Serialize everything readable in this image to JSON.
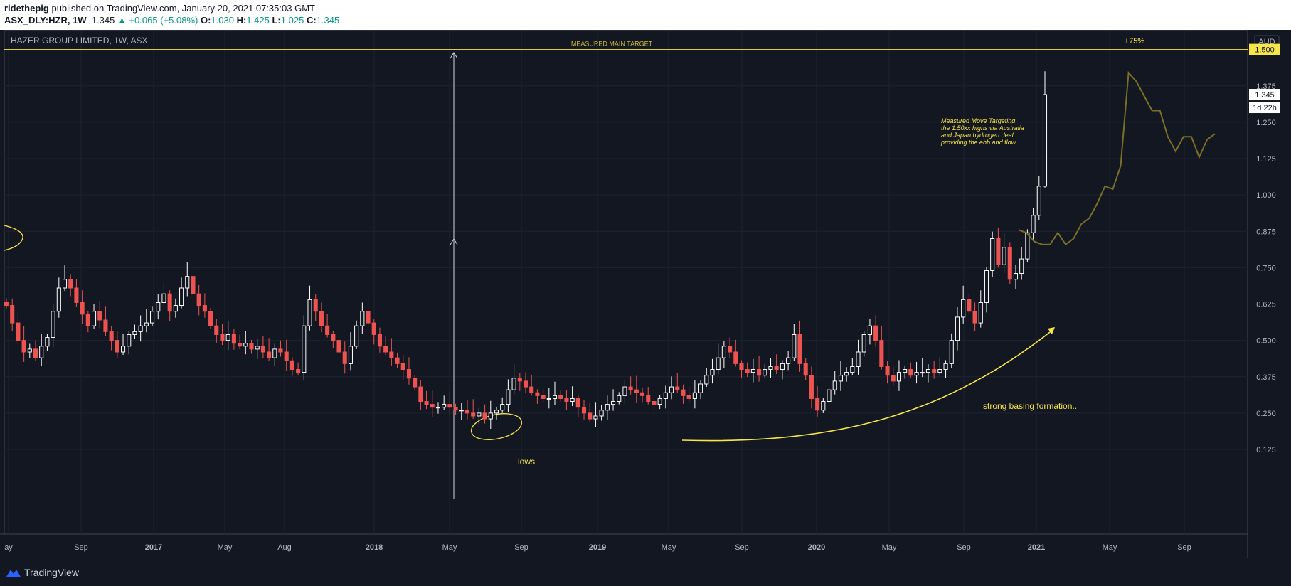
{
  "header": {
    "author": "ridethepig",
    "published_text": "published on TradingView.com, January 20, 2021 07:35:03 GMT",
    "symbol": "ASX_DLY:HZR, 1W",
    "last": "1.345",
    "change": "+0.065 (+5.08%)",
    "o_label": "O:",
    "o_value": "1.030",
    "h_label": "H:",
    "h_value": "1.425",
    "l_label": "L:",
    "l_value": "1.025",
    "c_label": "C:",
    "c_value": "1.345"
  },
  "footer": {
    "brand": "TradingView",
    "logo_icon": "tradingview-logo-icon"
  },
  "colors": {
    "background": "#131722",
    "up": "#ffffff",
    "down": "#ef5350",
    "annotation": "#f7e64a",
    "projection": "#7a7025",
    "grid": "#1f2330"
  },
  "chart_data": {
    "type": "candlestick",
    "title": "HAZER GROUP LIMITED, 1W, ASX",
    "currency": "AUD",
    "ylim": [
      0.05,
      1.6
    ],
    "y_ticks": [
      "0.125",
      "0.250",
      "0.375",
      "0.500",
      "0.625",
      "0.750",
      "0.875",
      "1.000",
      "1.125",
      "1.250",
      "1.375"
    ],
    "x_ticks": [
      "ay",
      "Sep",
      "2017",
      "May",
      "Aug",
      "2018",
      "May",
      "Sep",
      "2019",
      "May",
      "Sep",
      "2020",
      "May",
      "Sep",
      "2021",
      "May",
      "Sep"
    ],
    "price_labels": {
      "target": "1.500",
      "current": "1.345",
      "countdown": "1d 22h"
    },
    "price_series": [
      0.62,
      0.56,
      0.5,
      0.46,
      0.47,
      0.44,
      0.48,
      0.51,
      0.6,
      0.68,
      0.71,
      0.68,
      0.63,
      0.59,
      0.55,
      0.6,
      0.57,
      0.53,
      0.5,
      0.46,
      0.48,
      0.52,
      0.53,
      0.55,
      0.56,
      0.6,
      0.63,
      0.66,
      0.6,
      0.62,
      0.68,
      0.72,
      0.66,
      0.62,
      0.6,
      0.55,
      0.52,
      0.5,
      0.52,
      0.49,
      0.48,
      0.49,
      0.47,
      0.48,
      0.46,
      0.44,
      0.47,
      0.46,
      0.43,
      0.4,
      0.39,
      0.55,
      0.64,
      0.6,
      0.55,
      0.52,
      0.5,
      0.46,
      0.42,
      0.48,
      0.55,
      0.6,
      0.56,
      0.52,
      0.48,
      0.46,
      0.44,
      0.42,
      0.4,
      0.37,
      0.34,
      0.29,
      0.28,
      0.27,
      0.27,
      0.28,
      0.27,
      0.26,
      0.26,
      0.25,
      0.24,
      0.25,
      0.23,
      0.25,
      0.26,
      0.28,
      0.33,
      0.37,
      0.36,
      0.34,
      0.32,
      0.31,
      0.3,
      0.3,
      0.31,
      0.3,
      0.29,
      0.3,
      0.27,
      0.25,
      0.23,
      0.24,
      0.26,
      0.28,
      0.29,
      0.31,
      0.34,
      0.33,
      0.32,
      0.31,
      0.29,
      0.28,
      0.3,
      0.32,
      0.34,
      0.33,
      0.31,
      0.3,
      0.32,
      0.35,
      0.38,
      0.4,
      0.44,
      0.48,
      0.46,
      0.42,
      0.4,
      0.39,
      0.4,
      0.38,
      0.4,
      0.41,
      0.4,
      0.42,
      0.44,
      0.52,
      0.42,
      0.38,
      0.3,
      0.26,
      0.29,
      0.33,
      0.36,
      0.38,
      0.39,
      0.41,
      0.46,
      0.52,
      0.55,
      0.5,
      0.41,
      0.38,
      0.36,
      0.39,
      0.4,
      0.38,
      0.39,
      0.39,
      0.4,
      0.39,
      0.4,
      0.42,
      0.5,
      0.58,
      0.64,
      0.6,
      0.56,
      0.63,
      0.74,
      0.85,
      0.76,
      0.82,
      0.71,
      0.73,
      0.78,
      0.87,
      0.93,
      1.03,
      1.345
    ],
    "projection_series": [
      0.88,
      0.87,
      0.84,
      0.83,
      0.83,
      0.87,
      0.83,
      0.85,
      0.9,
      0.92,
      0.97,
      1.03,
      1.02,
      1.1,
      1.42,
      1.39,
      1.34,
      1.29,
      1.29,
      1.2,
      1.15,
      1.2,
      1.2,
      1.13,
      1.19,
      1.21
    ],
    "annotations": {
      "target_line": "MEASURED MAIN TARGET",
      "target_pct": "+75%",
      "note_lines": [
        "Measured Move Targeting",
        "the 1.50xx highs via Australia",
        "and Japan hydrogen deal",
        "providing the ebb and flow"
      ],
      "lows": "lows",
      "basing": "strong basing formation.."
    }
  }
}
